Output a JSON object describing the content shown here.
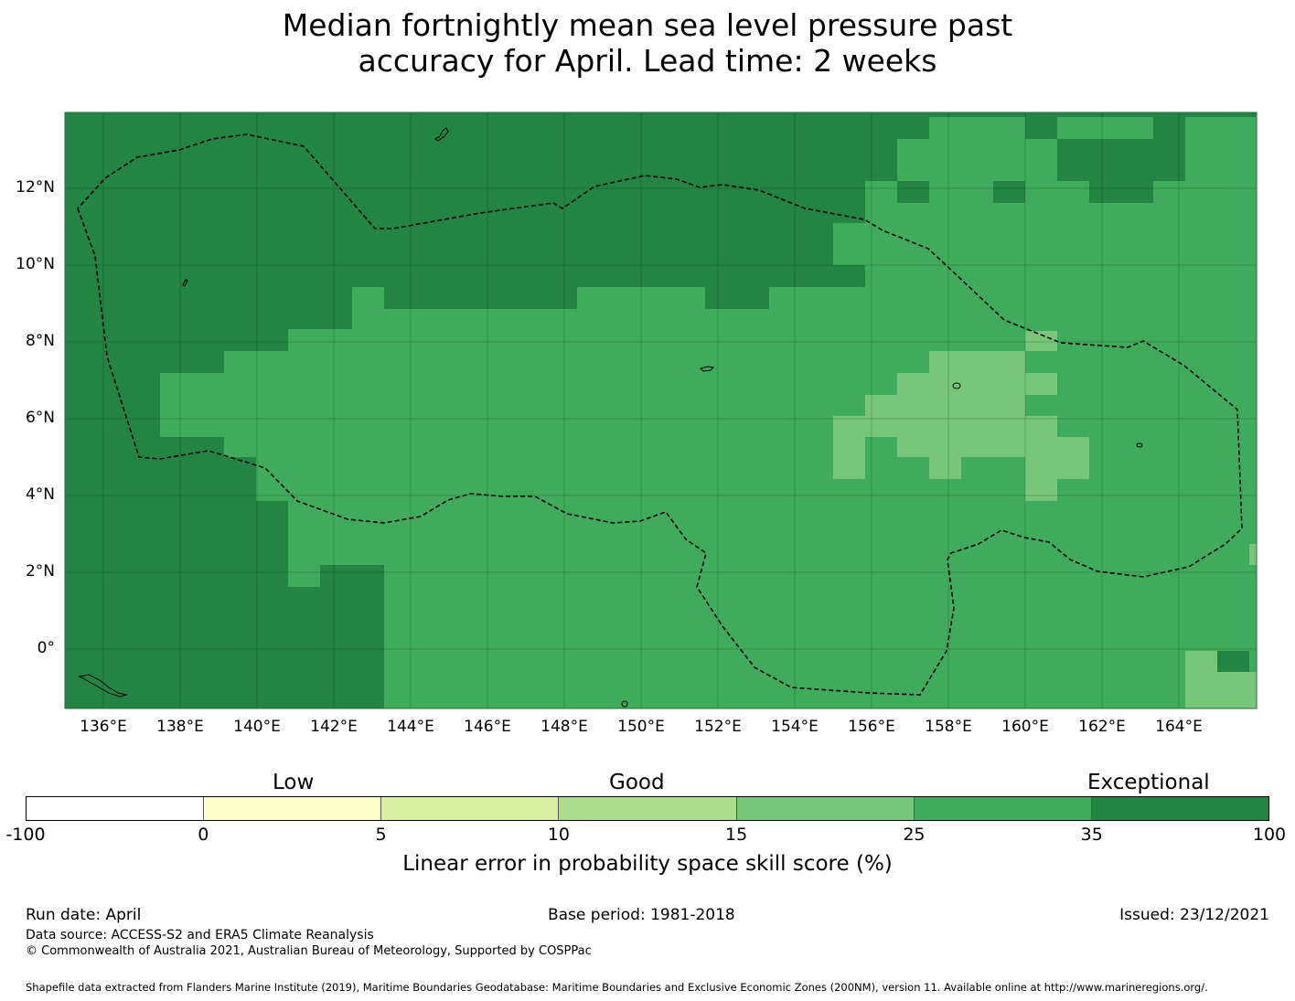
{
  "title_line1": "Median fortnightly mean sea level pressure past",
  "title_line2": "accuracy for April. Lead time: 2 weeks",
  "map": {
    "lon_range": [
      135,
      166
    ],
    "lat_range": [
      -1.5,
      14
    ],
    "lon_labels": [
      "136°E",
      "138°E",
      "140°E",
      "142°E",
      "144°E",
      "146°E",
      "148°E",
      "150°E",
      "152°E",
      "154°E",
      "156°E",
      "158°E",
      "160°E",
      "162°E",
      "164°E"
    ],
    "lat_labels": [
      "12°N",
      "10°N",
      "8°N",
      "6°N",
      "4°N",
      "2°N",
      "0°"
    ],
    "colors": {
      "exceptional_35_100": "#238443",
      "skill_25_35": "#41ab5d",
      "skill_15_25": "#78c679"
    }
  },
  "colorbar": {
    "categories": [
      "Low",
      "Good",
      "Exceptional"
    ],
    "ticks": [
      "-100",
      "0",
      "5",
      "10",
      "15",
      "25",
      "35",
      "100"
    ],
    "colors": [
      "#ffffff",
      "#ffffcc",
      "#d9f0a3",
      "#addd8e",
      "#78c679",
      "#41ab5d",
      "#238443"
    ],
    "label": "Linear error in probability space skill score (%)"
  },
  "footer": {
    "run_date": "Run date: April",
    "base_period": "Base period: 1981-2018",
    "issued": "Issued: 23/12/2021",
    "data_source": "Data source: ACCESS-S2 and ERA5 Climate Reanalysis",
    "copyright": "© Commonwealth of Australia 2021, Australian Bureau of Meteorology, Supported by COSPPac",
    "shapefile": "Shapefile data extracted from Flanders Marine Institute (2019), Maritime Boundaries Geodatabase: Maritime Boundaries and Exclusive Economic Zones (200NM), version 11. Available online at http://www.marineregions.org/."
  }
}
